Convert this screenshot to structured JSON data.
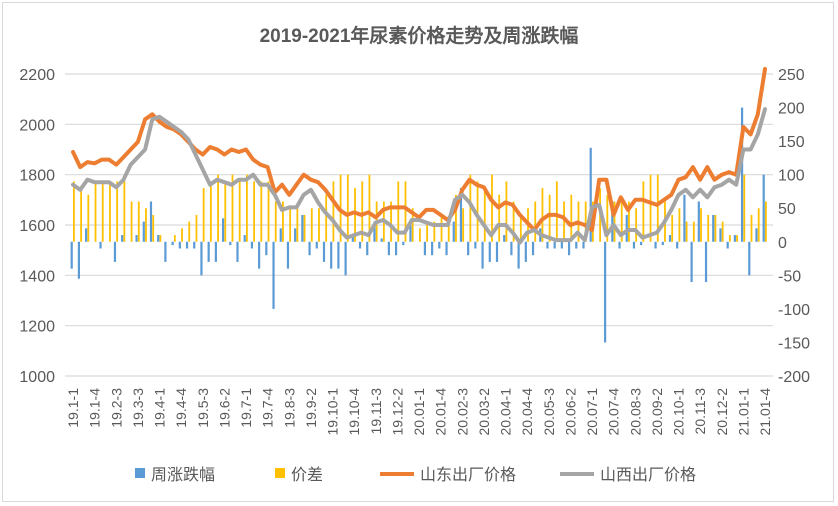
{
  "chart_data": {
    "type": "bar+line",
    "title": "2019-2021年尿素价格走势及周涨跌幅",
    "grid": true,
    "legend_placement": "bottom",
    "y_left": {
      "range": [
        1000,
        2200
      ],
      "ticks": [
        1000,
        1200,
        1400,
        1600,
        1800,
        2000,
        2200
      ]
    },
    "y_right": {
      "range": [
        -200,
        250
      ],
      "ticks": [
        -200,
        -150,
        -100,
        -50,
        0,
        50,
        100,
        150,
        200,
        250
      ]
    },
    "x_tick_labels": [
      "19.1-1",
      "19.1-4",
      "19.2-3",
      "19.3-3",
      "19.4-1",
      "19.4-4",
      "19.5-3",
      "19.6-2",
      "19.7-1",
      "19.7-4",
      "19.8-3",
      "19.9-2",
      "19.10-1",
      "19.10-4",
      "19.11-3",
      "19.12-2",
      "20.01-1",
      "20.01-4",
      "20.02-3",
      "20.03-2",
      "20.04-1",
      "20.04-4",
      "20.05-3",
      "20.06-2",
      "20.07-1",
      "20.07-4",
      "20.08-3",
      "20.09-2",
      "20.10-1",
      "20.11-3",
      "20.12-2",
      "21.01-1",
      "21.01-4"
    ],
    "series": [
      {
        "name": "周涨跌幅",
        "kind": "bar",
        "axis": "right",
        "color": "#5b9bd5",
        "values": [
          -40,
          -55,
          20,
          0,
          -10,
          0,
          -30,
          10,
          0,
          10,
          30,
          60,
          10,
          -30,
          -5,
          -10,
          -10,
          -10,
          -50,
          -30,
          -30,
          35,
          -5,
          -30,
          10,
          -10,
          -40,
          -20,
          -100,
          20,
          -40,
          20,
          40,
          -20,
          -10,
          -30,
          -40,
          -40,
          -50,
          10,
          -10,
          -20,
          30,
          5,
          -20,
          -20,
          -5,
          30,
          0,
          -20,
          -20,
          -10,
          -20,
          30,
          80,
          -20,
          -10,
          -40,
          -30,
          -30,
          10,
          -20,
          -40,
          -30,
          -20,
          20,
          -10,
          -10,
          -10,
          -20,
          -10,
          -10,
          140,
          0,
          -150,
          60,
          -10,
          40,
          -10,
          -5,
          0,
          -10,
          -5,
          10,
          -10,
          70,
          -60,
          60,
          -60,
          40,
          20,
          -10,
          10,
          200,
          -50,
          20,
          100
        ]
      },
      {
        "name": "价差",
        "kind": "bar",
        "axis": "right",
        "color": "#ffc000",
        "values": [
          90,
          80,
          70,
          90,
          90,
          90,
          90,
          90,
          60,
          60,
          50,
          40,
          10,
          0,
          10,
          20,
          30,
          40,
          80,
          90,
          100,
          90,
          100,
          90,
          100,
          90,
          90,
          90,
          60,
          60,
          50,
          50,
          40,
          50,
          50,
          70,
          90,
          100,
          100,
          80,
          90,
          100,
          60,
          60,
          60,
          90,
          90,
          50,
          20,
          30,
          30,
          40,
          30,
          70,
          50,
          100,
          90,
          80,
          100,
          70,
          90,
          60,
          40,
          50,
          60,
          80,
          70,
          90,
          60,
          70,
          60,
          60,
          60,
          80,
          70,
          60,
          60,
          60,
          50,
          90,
          100,
          100,
          60,
          40,
          50,
          30,
          30,
          50,
          40,
          40,
          30,
          10,
          10,
          100,
          40,
          50,
          60
        ]
      },
      {
        "name": "山东出厂价格",
        "kind": "line",
        "axis": "left",
        "color": "#ed7d31",
        "values": [
          1890,
          1830,
          1850,
          1845,
          1860,
          1860,
          1840,
          1870,
          1900,
          1930,
          2020,
          2040,
          2010,
          1990,
          1980,
          1960,
          1930,
          1900,
          1880,
          1910,
          1900,
          1880,
          1900,
          1890,
          1900,
          1860,
          1840,
          1830,
          1730,
          1760,
          1720,
          1760,
          1800,
          1780,
          1770,
          1740,
          1700,
          1660,
          1640,
          1650,
          1640,
          1650,
          1630,
          1660,
          1670,
          1670,
          1670,
          1650,
          1630,
          1660,
          1660,
          1640,
          1620,
          1660,
          1740,
          1780,
          1760,
          1750,
          1700,
          1670,
          1690,
          1680,
          1640,
          1610,
          1580,
          1620,
          1640,
          1640,
          1630,
          1600,
          1610,
          1600,
          1580,
          1780,
          1780,
          1640,
          1710,
          1660,
          1700,
          1700,
          1690,
          1680,
          1700,
          1720,
          1780,
          1790,
          1830,
          1780,
          1830,
          1780,
          1800,
          1810,
          1800,
          1990,
          1960,
          2040,
          2220
        ]
      },
      {
        "name": "山西出厂价格",
        "kind": "line",
        "axis": "left",
        "color": "#a5a5a5",
        "values": [
          1760,
          1740,
          1780,
          1770,
          1770,
          1770,
          1750,
          1780,
          1840,
          1870,
          1900,
          2020,
          2030,
          2010,
          1990,
          1970,
          1940,
          1880,
          1820,
          1760,
          1780,
          1770,
          1760,
          1780,
          1780,
          1800,
          1760,
          1760,
          1720,
          1660,
          1670,
          1670,
          1720,
          1740,
          1690,
          1650,
          1620,
          1580,
          1550,
          1560,
          1570,
          1560,
          1610,
          1620,
          1600,
          1570,
          1570,
          1620,
          1620,
          1610,
          1600,
          1600,
          1600,
          1700,
          1720,
          1690,
          1640,
          1600,
          1560,
          1600,
          1600,
          1570,
          1530,
          1570,
          1580,
          1560,
          1550,
          1540,
          1540,
          1540,
          1570,
          1540,
          1670,
          1680,
          1560,
          1600,
          1560,
          1580,
          1580,
          1550,
          1560,
          1570,
          1610,
          1660,
          1720,
          1740,
          1710,
          1740,
          1710,
          1750,
          1760,
          1780,
          1760,
          1900,
          1900,
          1960,
          2060
        ]
      }
    ]
  }
}
